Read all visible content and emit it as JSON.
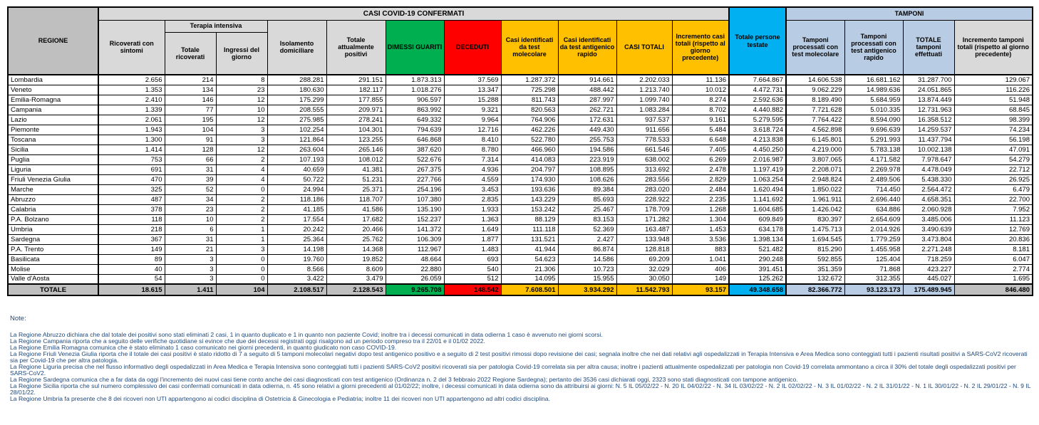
{
  "colors": {
    "header_gray": "#D9D9D9",
    "region_gray": "#BFBFBF",
    "dimessi_green": "#00B050",
    "deceduti_red": "#FF0000",
    "casi_orange": "#FFC000",
    "testate_cyan": "#00B0F0",
    "tamponi_blue": "#B8CCE4",
    "notes_text": "#1F497D"
  },
  "table": {
    "title": "CASI COVID-19 CONFERMATI",
    "region_header": "REGIONE",
    "tamponi_header": "TAMPONI",
    "terapia_header": "Terapia intensiva",
    "columns": [
      "Ricoverati con sintomi",
      "Totale ricoverati",
      "Ingressi del giorno",
      "Isolamento domiciliare",
      "Totale attualmente positivi",
      "DIMESSI GUARITI",
      "DECEDUTI",
      "Casi identificati da test molecolare",
      "Casi identificati da test antigenico rapido",
      "CASI TOTALI",
      "Incremento casi totali (rispetto al giorno precedente)",
      "Totale persone testate",
      "Tamponi processati con test molecolare",
      "Tamponi processati con test antigenico rapido",
      "TOTALE tamponi effettuati",
      "Incremento tamponi totali (rispetto al giorno precedente)"
    ],
    "rows": [
      {
        "region": "Lombardia",
        "values": [
          "2.656",
          "214",
          "8",
          "288.281",
          "291.151",
          "1.873.313",
          "37.569",
          "1.287.372",
          "914.661",
          "2.202.033",
          "11.136",
          "7.664.867",
          "14.606.538",
          "16.681.162",
          "31.287.700",
          "129.067"
        ]
      },
      {
        "region": "Veneto",
        "values": [
          "1.353",
          "134",
          "23",
          "180.630",
          "182.117",
          "1.018.276",
          "13.347",
          "725.298",
          "488.442",
          "1.213.740",
          "10.012",
          "4.472.731",
          "9.062.229",
          "14.989.636",
          "24.051.865",
          "116.226"
        ]
      },
      {
        "region": "Emilia-Romagna",
        "values": [
          "2.410",
          "146",
          "12",
          "175.299",
          "177.855",
          "906.597",
          "15.288",
          "811.743",
          "287.997",
          "1.099.740",
          "8.274",
          "2.592.636",
          "8.189.490",
          "5.684.959",
          "13.874.449",
          "51.948"
        ]
      },
      {
        "region": "Campania",
        "values": [
          "1.339",
          "77",
          "10",
          "208.555",
          "209.971",
          "863.992",
          "9.321",
          "820.563",
          "262.721",
          "1.083.284",
          "8.702",
          "4.440.882",
          "7.721.628",
          "5.010.335",
          "12.731.963",
          "68.845"
        ]
      },
      {
        "region": "Lazio",
        "values": [
          "2.061",
          "195",
          "12",
          "275.985",
          "278.241",
          "649.332",
          "9.964",
          "764.906",
          "172.631",
          "937.537",
          "9.161",
          "5.279.595",
          "7.764.422",
          "8.594.090",
          "16.358.512",
          "98.399"
        ]
      },
      {
        "region": "Piemonte",
        "values": [
          "1.943",
          "104",
          "3",
          "102.254",
          "104.301",
          "794.639",
          "12.716",
          "462.226",
          "449.430",
          "911.656",
          "5.484",
          "3.618.724",
          "4.562.898",
          "9.696.639",
          "14.259.537",
          "74.234"
        ]
      },
      {
        "region": "Toscana",
        "values": [
          "1.300",
          "91",
          "3",
          "121.864",
          "123.255",
          "646.868",
          "8.410",
          "522.780",
          "255.753",
          "778.533",
          "6.648",
          "4.213.838",
          "6.145.801",
          "5.291.993",
          "11.437.794",
          "56.198"
        ]
      },
      {
        "region": "Sicilia",
        "values": [
          "1.414",
          "128",
          "12",
          "263.604",
          "265.146",
          "387.620",
          "8.780",
          "466.960",
          "194.586",
          "661.546",
          "7.405",
          "4.450.250",
          "4.219.000",
          "5.783.138",
          "10.002.138",
          "47.091"
        ]
      },
      {
        "region": "Puglia",
        "values": [
          "753",
          "66",
          "2",
          "107.193",
          "108.012",
          "522.676",
          "7.314",
          "414.083",
          "223.919",
          "638.002",
          "6.269",
          "2.016.987",
          "3.807.065",
          "4.171.582",
          "7.978.647",
          "54.279"
        ]
      },
      {
        "region": "Liguria",
        "values": [
          "691",
          "31",
          "4",
          "40.659",
          "41.381",
          "267.375",
          "4.936",
          "204.797",
          "108.895",
          "313.692",
          "2.478",
          "1.197.419",
          "2.208.071",
          "2.269.978",
          "4.478.049",
          "22.712"
        ]
      },
      {
        "region": "Friuli Venezia Giulia",
        "values": [
          "470",
          "39",
          "4",
          "50.722",
          "51.231",
          "227.766",
          "4.559",
          "174.930",
          "108.626",
          "283.556",
          "2.829",
          "1.063.254",
          "2.948.824",
          "2.489.506",
          "5.438.330",
          "26.925"
        ]
      },
      {
        "region": "Marche",
        "values": [
          "325",
          "52",
          "0",
          "24.994",
          "25.371",
          "254.196",
          "3.453",
          "193.636",
          "89.384",
          "283.020",
          "2.484",
          "1.620.494",
          "1.850.022",
          "714.450",
          "2.564.472",
          "6.479"
        ]
      },
      {
        "region": "Abruzzo",
        "values": [
          "487",
          "34",
          "2",
          "118.186",
          "118.707",
          "107.380",
          "2.835",
          "143.229",
          "85.693",
          "228.922",
          "2.235",
          "1.141.692",
          "1.961.911",
          "2.696.440",
          "4.658.351",
          "22.700"
        ]
      },
      {
        "region": "Calabria",
        "values": [
          "378",
          "23",
          "2",
          "41.185",
          "41.586",
          "135.190",
          "1.933",
          "153.242",
          "25.467",
          "178.709",
          "1.268",
          "1.604.685",
          "1.426.042",
          "634.886",
          "2.060.928",
          "7.952"
        ]
      },
      {
        "region": "P.A. Bolzano",
        "values": [
          "118",
          "10",
          "2",
          "17.554",
          "17.682",
          "152.237",
          "1.363",
          "88.129",
          "83.153",
          "171.282",
          "1.304",
          "609.849",
          "830.397",
          "2.654.609",
          "3.485.006",
          "11.123"
        ]
      },
      {
        "region": "Umbria",
        "values": [
          "218",
          "6",
          "1",
          "20.242",
          "20.466",
          "141.372",
          "1.649",
          "111.118",
          "52.369",
          "163.487",
          "1.453",
          "634.178",
          "1.475.713",
          "2.014.926",
          "3.490.639",
          "12.769"
        ]
      },
      {
        "region": "Sardegna",
        "values": [
          "367",
          "31",
          "1",
          "25.364",
          "25.762",
          "106.309",
          "1.877",
          "131.521",
          "2.427",
          "133.948",
          "3.536",
          "1.398.134",
          "1.694.545",
          "1.779.259",
          "3.473.804",
          "20.836"
        ]
      },
      {
        "region": "P.A. Trento",
        "values": [
          "149",
          "21",
          "3",
          "14.198",
          "14.368",
          "112.967",
          "1.483",
          "41.944",
          "86.874",
          "128.818",
          "883",
          "521.482",
          "815.290",
          "1.455.958",
          "2.271.248",
          "8.181"
        ]
      },
      {
        "region": "Basilicata",
        "values": [
          "89",
          "3",
          "0",
          "19.760",
          "19.852",
          "48.664",
          "693",
          "54.623",
          "14.586",
          "69.209",
          "1.041",
          "290.248",
          "592.855",
          "125.404",
          "718.259",
          "6.047"
        ]
      },
      {
        "region": "Molise",
        "values": [
          "40",
          "3",
          "0",
          "8.566",
          "8.609",
          "22.880",
          "540",
          "21.306",
          "10.723",
          "32.029",
          "406",
          "391.451",
          "351.359",
          "71.868",
          "423.227",
          "2.774"
        ]
      },
      {
        "region": "Valle d'Aosta",
        "values": [
          "54",
          "3",
          "0",
          "3.422",
          "3.479",
          "26.059",
          "512",
          "14.095",
          "15.955",
          "30.050",
          "149",
          "125.262",
          "132.672",
          "312.355",
          "445.027",
          "1.695"
        ]
      }
    ],
    "total_row": {
      "region": "TOTALE",
      "values": [
        "18.615",
        "1.411",
        "104",
        "2.108.517",
        "2.128.543",
        "9.265.708",
        "148.542",
        "7.608.501",
        "3.934.292",
        "11.542.793",
        "93.157",
        "49.348.658",
        "82.366.772",
        "93.123.173",
        "175.489.945",
        "846.480"
      ]
    }
  },
  "notes": {
    "title": "Note:",
    "items": [
      "La Regione Abruzzo dichiara che dal totale dei positivi sono stati eliminati 2 casi, 1 in quanto duplicato e 1 in quanto non paziente Covid; inoltre tra i decessi comunicati in data odierna 1 caso è avvenuto nei giorni scorsi.",
      "La Regione Campania riporta che a seguito delle verifiche quotidiane si evince che due dei decessi registrati oggi risalgono ad un periodo compreso tra il 22/01 e il 01/02 2022.",
      "La Regione Emilia Romagna comunica che è stato eliminato 1 caso comunicato nei giorni precedenti, in quanto giudicato non caso COVID-19.",
      "La Regione Friuli Venezia Giulia riporta che il totale dei casi positivi è stato ridotto di 7 a seguito di 5 tamponi molecolari negativi dopo test antigenico positivo e a seguito di 2 test positivi rimossi dopo revisione dei casi; segnala inoltre che nei dati relativi agli ospedalizzati in Terapia Intensiva e Area Medica sono conteggiati tutti i pazienti risultati positivi a SARS-CoV2 ricoverati sia per Covid-19 che per altra patologia.",
      "La Regione Liguria precisa che nel flusso informativo degli ospedalizzati in Area Medica e Terapia Intensiva sono conteggiati tutti i pazienti SARS-CoV2 positivi ricoverati sia per patologia Covid-19 correlata sia per altra causa; inoltre i pazienti attualmente ospedalizzati per patologia non Covid-19 correlata ammontano a circa il 30% del totale degli ospedalizzati positivi per SARS-CoV2.",
      "La Regione Sardegna comunica che a far data da oggi l'incremento dei nuovi casi tiene conto anche dei casi diagnosticati con test antigenico (Ordinanza n. 2 del 3 febbraio 2022 Regione Sardegna); pertanto dei 3536 casi dichiarati oggi, 2323 sono stati diagnosticati con tampone antigenico.",
      "La Regione Sicilia riporta che sul numero complessivo dei casi confermati comunicati in data odierna, n. 45 sono relativi a giorni precedenti al 01/02/22; inoltre, i decessi comunicati in data odierna sono da attribuirsi ai giorni: N. 5 IL 05/02/22 - N. 20 IL 04/02/22 - N. 34 IL 03/02/22 - N. 2 IL 02/02/22 - N. 3 IL 01/02/22 - N. 2 IL 31/01/22 - N. 1 IL 30/01/22 - N. 2 IL 29/01/22 - N. 9 IL 28/01/22.",
      "La Regione Umbria fa presente che 8 dei ricoveri non UTI appartengono ai codici disciplina di Ostetricia & Ginecologia e Pediatria; inoltre 11 dei ricoveri non UTI appartengono ad altri codici disciplina."
    ]
  }
}
